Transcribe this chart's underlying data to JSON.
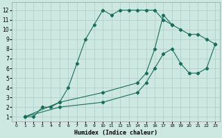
{
  "xlabel": "Humidex (Indice chaleur)",
  "background_color": "#cce8e0",
  "grid_color": "#aacccc",
  "line_color": "#1a6b5a",
  "xlim": [
    -0.5,
    23.5
  ],
  "ylim": [
    0.5,
    12.8
  ],
  "xticks": [
    0,
    1,
    2,
    3,
    4,
    5,
    6,
    7,
    8,
    9,
    10,
    11,
    12,
    13,
    14,
    15,
    16,
    17,
    18,
    19,
    20,
    21,
    22,
    23
  ],
  "yticks": [
    1,
    2,
    3,
    4,
    5,
    6,
    7,
    8,
    9,
    10,
    11,
    12
  ],
  "curve1_x": [
    1,
    2,
    3,
    4,
    5,
    6,
    7,
    8,
    9,
    10,
    11,
    12,
    13,
    14,
    15,
    16,
    17,
    18
  ],
  "curve1_y": [
    1,
    1,
    2,
    2,
    2.5,
    4,
    6.5,
    9,
    10.5,
    12,
    11.5,
    12,
    12,
    12,
    12,
    12,
    11,
    10.5
  ],
  "curve2_x": [
    1,
    5,
    10,
    14,
    15,
    16,
    17,
    18,
    19,
    20,
    21,
    22,
    23
  ],
  "curve2_y": [
    1,
    2.5,
    3.5,
    4.5,
    5.5,
    8,
    11.5,
    10.5,
    10,
    9.5,
    9.5,
    9,
    8.5
  ],
  "curve3_x": [
    1,
    5,
    10,
    14,
    15,
    16,
    17,
    18,
    19,
    20,
    21,
    22,
    23
  ],
  "curve3_y": [
    1,
    2,
    2.5,
    3.5,
    4.5,
    6,
    7.5,
    8,
    6.5,
    5.5,
    5.5,
    6,
    8.5
  ]
}
